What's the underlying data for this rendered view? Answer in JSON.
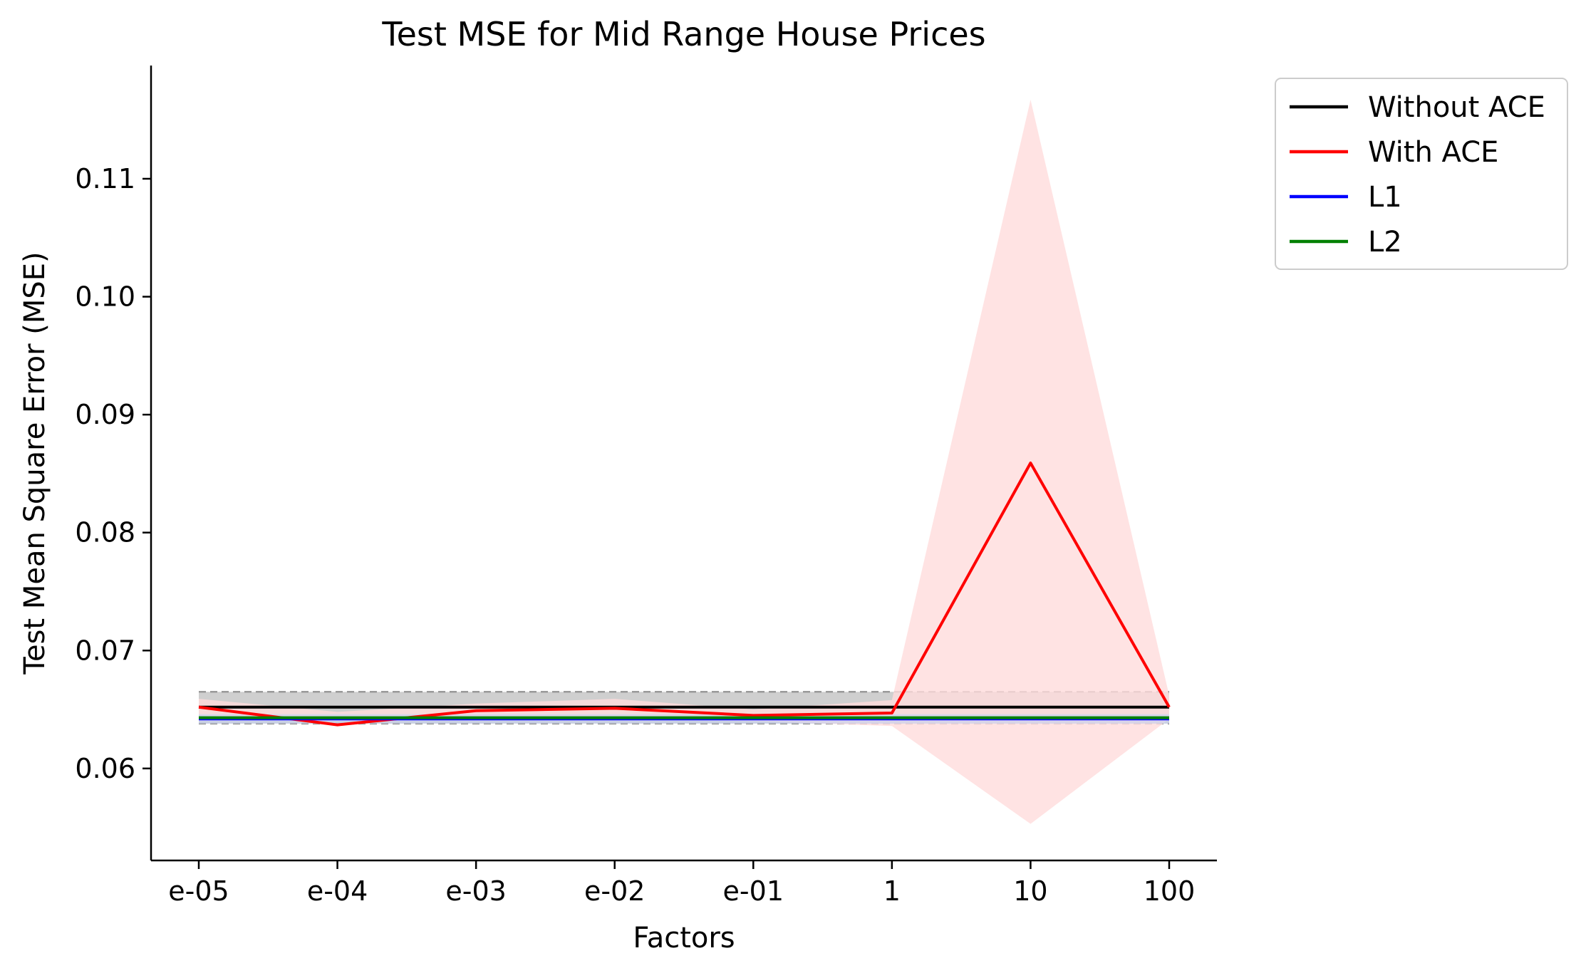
{
  "chart_data": {
    "type": "line",
    "title": "Test MSE for Mid Range House Prices",
    "xlabel": "Factors",
    "ylabel": "Test Mean Square Error (MSE)",
    "categories": [
      "e-05",
      "e-04",
      "e-03",
      "e-02",
      "e-01",
      "1",
      "10",
      "100"
    ],
    "ylim": [
      0.0522,
      0.1196
    ],
    "yticks": [
      0.06,
      0.07,
      0.08,
      0.09,
      0.1,
      0.11
    ],
    "ytick_labels": [
      "0.06",
      "0.07",
      "0.08",
      "0.09",
      "0.10",
      "0.11"
    ],
    "grid": false,
    "legend_position": "outside-top-right",
    "series": [
      {
        "name": "Without ACE",
        "color": "#000000",
        "values": [
          0.0652,
          0.0652,
          0.0652,
          0.0652,
          0.0652,
          0.0652,
          0.0652,
          0.0652
        ],
        "band_lower": [
          0.0638,
          0.0638,
          0.0638,
          0.0638,
          0.0638,
          0.0638,
          0.0638,
          0.0638
        ],
        "band_upper": [
          0.0665,
          0.0665,
          0.0665,
          0.0665,
          0.0665,
          0.0665,
          0.0665,
          0.0665
        ],
        "band_color": "#b5b5b5",
        "band_style": "dashed-edges"
      },
      {
        "name": "With ACE",
        "color": "#ff0000",
        "values": [
          0.0652,
          0.0637,
          0.0649,
          0.0651,
          0.0645,
          0.0647,
          0.0859,
          0.0652
        ],
        "band_lower": [
          0.0645,
          0.0641,
          0.0642,
          0.0643,
          0.064,
          0.0636,
          0.0553,
          0.0642
        ],
        "band_upper": [
          0.0659,
          0.0648,
          0.0655,
          0.0659,
          0.065,
          0.0658,
          0.1167,
          0.0662
        ],
        "band_color": "#ffdcdc"
      },
      {
        "name": "L1",
        "color": "#0000ff",
        "values": [
          0.0642,
          0.0642,
          0.0642,
          0.0642,
          0.0642,
          0.0642,
          0.0642,
          0.0642
        ],
        "band_lower": [
          0.0638,
          0.0638,
          0.0638,
          0.0638,
          0.0638,
          0.0638,
          0.0638,
          0.0638
        ],
        "band_upper": [
          0.0646,
          0.0646,
          0.0646,
          0.0646,
          0.0646,
          0.0646,
          0.0646,
          0.0646
        ],
        "band_color": "#c8d2f0"
      },
      {
        "name": "L2",
        "color": "#008000",
        "values": [
          0.0643,
          0.0643,
          0.0643,
          0.0643,
          0.0643,
          0.0643,
          0.0643,
          0.0643
        ]
      }
    ]
  }
}
